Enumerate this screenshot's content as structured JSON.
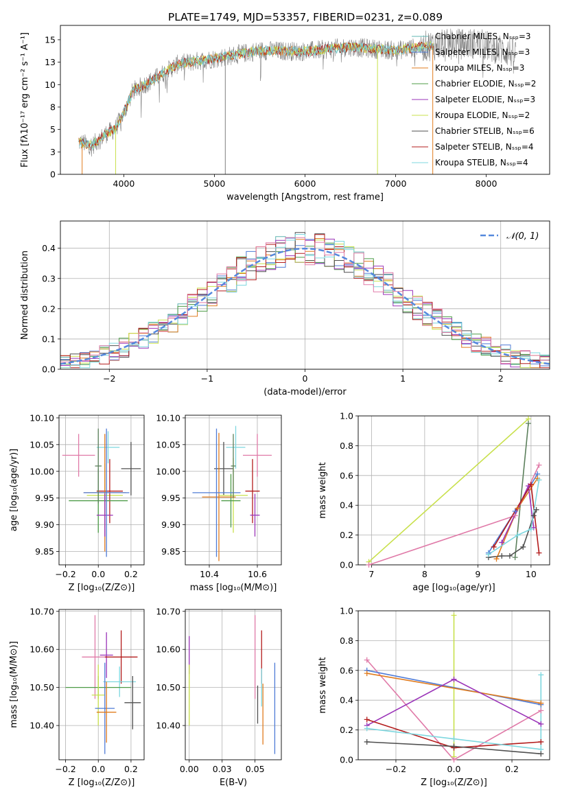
{
  "figure_title": "PLATE=1749, MJD=53357, FIBERID=0231, z=0.089",
  "palette": {
    "chabrier_miles": "#5fb4b0",
    "salpeter_miles": "#4f7bd6",
    "kroupa_miles": "#e07b1d",
    "chabrier_elodie": "#4c9b46",
    "salpeter_elodie": "#9a33b8",
    "kroupa_elodie": "#c8e04b",
    "chabrier_stelib": "#4f4f4f",
    "salpeter_stelib": "#b31b1b",
    "kroupa_stelib": "#7dd7df",
    "pink": "#e07aa8",
    "dark_green": "#5b7f5b",
    "normal_line": "#5588dd"
  },
  "chart_data": [
    {
      "id": "spectrum",
      "type": "line",
      "xlabel": "wavelength [Angstrom, rest frame]",
      "ylabel": "Flux [fλ10⁻¹⁷ erg cm⁻² s⁻¹ A⁻¹]",
      "xlim": [
        3300,
        8700
      ],
      "ylim": [
        0,
        16.6
      ],
      "xticks": [
        4000,
        5000,
        6000,
        7000,
        8000
      ],
      "yticks": [
        0.0,
        2.5,
        5.0,
        7.5,
        10.0,
        12.5,
        15.0
      ],
      "grid": false,
      "legend": "top-right",
      "legend_entries": [
        "Chabrier MILES, N_SSP=3",
        "Salpeter MILES, N_SSP=3",
        "Kroupa MILES, N_SSP=3",
        "Chabrier ELODIE, N_SSP=2",
        "Salpeter ELODIE, N_SSP=3",
        "Kroupa ELODIE, N_SSP=2",
        "Chabrier STELIB, N_SSP=6",
        "Salpeter STELIB, N_SSP=4",
        "Kroupa STELIB, N_SSP=4"
      ],
      "continuum": {
        "x": [
          3500,
          3650,
          3800,
          3900,
          4000,
          4100,
          4300,
          4600,
          5000,
          5500,
          6000,
          6500,
          7000,
          7400,
          7900,
          8300
        ],
        "y": [
          3.6,
          3.2,
          4.5,
          5.0,
          6.8,
          9.3,
          10.4,
          12.3,
          12.9,
          13.8,
          13.7,
          14.2,
          13.8,
          14.4,
          14.6,
          13.5
        ]
      },
      "observed_extent": [
        3500,
        8330
      ],
      "model_extent": [
        3500,
        7420
      ]
    },
    {
      "id": "residuals",
      "type": "line",
      "xlabel": "(data-model)/error",
      "ylabel": "Normed distribution",
      "xlim": [
        -2.5,
        2.5
      ],
      "ylim": [
        0,
        0.49
      ],
      "xticks": [
        -2,
        -1,
        0,
        1,
        2
      ],
      "yticks": [
        0.0,
        0.1,
        0.2,
        0.3,
        0.4
      ],
      "grid": true,
      "legend": "top-right",
      "normal_label": "𝒩(0, 1)",
      "bin_width": 0.1
    },
    {
      "id": "age_vs_Z",
      "type": "scatter",
      "xlabel": "Z [log₁₀(Z/Z⊙)]",
      "ylabel": "age  [log₁₀(age/yr)]",
      "xlim": [
        -0.24,
        0.28
      ],
      "ylim": [
        9.825,
        10.105
      ],
      "xticks": [
        -0.2,
        0.0,
        0.2
      ],
      "yticks": [
        9.85,
        9.9,
        9.95,
        10.0,
        10.05,
        10.1
      ],
      "grid": true,
      "points": [
        {
          "x": -0.12,
          "y": 10.03,
          "xerr": 0.1,
          "yerr": 0.04,
          "c": "pink"
        },
        {
          "x": 0.06,
          "y": 10.045,
          "xerr": 0.07,
          "yerr": 0.03,
          "c": "kroupa_stelib"
        },
        {
          "x": 0.2,
          "y": 10.005,
          "xerr": 0.06,
          "yerr": 0.05,
          "c": "chabrier_stelib"
        },
        {
          "x": 0.04,
          "y": 9.955,
          "xerr": 0.11,
          "yerr": 0.06,
          "c": "kroupa_elodie"
        },
        {
          "x": 0.07,
          "y": 9.963,
          "xerr": 0.08,
          "yerr": 0.06,
          "c": "salpeter_stelib"
        },
        {
          "x": 0.0,
          "y": 9.945,
          "xerr": 0.18,
          "yerr": 0.06,
          "c": "chabrier_elodie"
        },
        {
          "x": 0.04,
          "y": 9.96,
          "xerr": 0.13,
          "yerr": 0.11,
          "c": "kroupa_miles"
        },
        {
          "x": 0.04,
          "y": 9.918,
          "xerr": 0.05,
          "yerr": 0.04,
          "c": "salpeter_elodie"
        },
        {
          "x": 0.05,
          "y": 9.96,
          "xerr": 0.14,
          "yerr": 0.12,
          "c": "salpeter_miles"
        },
        {
          "x": 0.0,
          "y": 10.01,
          "xerr": 0.02,
          "yerr": 0.07,
          "c": "dark_green"
        }
      ]
    },
    {
      "id": "age_vs_mass",
      "type": "scatter",
      "xlabel": "mass [log₁₀(M/M⊙)]",
      "ylabel": "",
      "xlim": [
        10.3,
        10.7
      ],
      "ylim": [
        9.825,
        10.105
      ],
      "xticks": [
        10.4,
        10.6
      ],
      "yticks": [
        9.85,
        9.9,
        9.95,
        10.0,
        10.05,
        10.1
      ],
      "grid": true,
      "points": [
        {
          "x": 10.6,
          "y": 10.03,
          "xerr": 0.06,
          "yerr": 0.04,
          "c": "pink"
        },
        {
          "x": 10.51,
          "y": 10.045,
          "xerr": 0.04,
          "yerr": 0.04,
          "c": "kroupa_stelib"
        },
        {
          "x": 10.46,
          "y": 10.005,
          "xerr": 0.04,
          "yerr": 0.05,
          "c": "chabrier_stelib"
        },
        {
          "x": 10.5,
          "y": 9.955,
          "xerr": 0.06,
          "yerr": 0.07,
          "c": "kroupa_elodie"
        },
        {
          "x": 10.58,
          "y": 9.963,
          "xerr": 0.03,
          "yerr": 0.06,
          "c": "salpeter_stelib"
        },
        {
          "x": 10.49,
          "y": 9.945,
          "xerr": 0.04,
          "yerr": 0.05,
          "c": "chabrier_elodie"
        },
        {
          "x": 10.44,
          "y": 9.952,
          "xerr": 0.07,
          "yerr": 0.12,
          "c": "kroupa_miles"
        },
        {
          "x": 10.59,
          "y": 9.918,
          "xerr": 0.02,
          "yerr": 0.04,
          "c": "salpeter_elodie"
        },
        {
          "x": 10.43,
          "y": 9.96,
          "xerr": 0.1,
          "yerr": 0.12,
          "c": "salpeter_miles"
        },
        {
          "x": 10.5,
          "y": 10.01,
          "xerr": 0.01,
          "yerr": 0.06,
          "c": "dark_green"
        }
      ]
    },
    {
      "id": "massweight_vs_age",
      "type": "line",
      "xlabel": "age  [log₁₀(age/yr)]",
      "ylabel": "mass weight",
      "xlim": [
        6.75,
        10.35
      ],
      "ylim": [
        0,
        1
      ],
      "xticks": [
        7,
        8,
        9,
        10
      ],
      "yticks": [
        0.0,
        0.2,
        0.4,
        0.6,
        0.8,
        1.0
      ],
      "grid": true,
      "series": [
        {
          "c": "kroupa_elodie",
          "x": [
            6.95,
            9.95
          ],
          "y": [
            0.02,
            0.98
          ]
        },
        {
          "c": "pink",
          "x": [
            6.95,
            9.7,
            10.15
          ],
          "y": [
            0.0,
            0.33,
            0.67
          ]
        },
        {
          "c": "dark_green",
          "x": [
            9.7,
            9.95
          ],
          "y": [
            0.05,
            0.95
          ]
        },
        {
          "c": "salpeter_miles",
          "x": [
            9.2,
            9.7,
            10.12
          ],
          "y": [
            0.08,
            0.36,
            0.61
          ]
        },
        {
          "c": "kroupa_miles",
          "x": [
            9.35,
            9.75,
            10.12
          ],
          "y": [
            0.04,
            0.38,
            0.58
          ]
        },
        {
          "c": "salpeter_elodie",
          "x": [
            9.45,
            9.95,
            10.05
          ],
          "y": [
            0.15,
            0.53,
            0.25
          ]
        },
        {
          "c": "salpeter_stelib",
          "x": [
            9.3,
            10.0,
            10.15
          ],
          "y": [
            0.12,
            0.54,
            0.08
          ]
        },
        {
          "c": "chabrier_stelib",
          "x": [
            9.2,
            9.45,
            9.6,
            9.85,
            10.05,
            10.1
          ],
          "y": [
            0.05,
            0.06,
            0.06,
            0.12,
            0.33,
            0.37
          ]
        },
        {
          "c": "kroupa_stelib",
          "x": [
            9.2,
            9.75,
            10.0,
            10.15
          ],
          "y": [
            0.07,
            0.2,
            0.24,
            0.57
          ]
        }
      ]
    },
    {
      "id": "mass_vs_Z",
      "type": "scatter",
      "xlabel": "Z [log₁₀(Z/Z⊙)]",
      "ylabel": "mass [log₁₀(M/M⊙)]",
      "xlim": [
        -0.24,
        0.28
      ],
      "ylim": [
        10.31,
        10.705
      ],
      "xticks": [
        -0.2,
        0.0,
        0.2
      ],
      "yticks": [
        10.4,
        10.5,
        10.6,
        10.7
      ],
      "grid": true,
      "points": [
        {
          "x": -0.02,
          "y": 10.58,
          "xerr": 0.08,
          "yerr": 0.11,
          "c": "pink"
        },
        {
          "x": 0.05,
          "y": 10.585,
          "xerr": 0.04,
          "yerr": 0.06,
          "c": "salpeter_elodie"
        },
        {
          "x": 0.14,
          "y": 10.58,
          "xerr": 0.1,
          "yerr": 0.07,
          "c": "salpeter_stelib"
        },
        {
          "x": 0.13,
          "y": 10.515,
          "xerr": 0.1,
          "yerr": 0.04,
          "c": "kroupa_stelib"
        },
        {
          "x": 0.0,
          "y": 10.5,
          "xerr": 0.2,
          "yerr": 0.03,
          "c": "chabrier_elodie"
        },
        {
          "x": 0.0,
          "y": 10.48,
          "xerr": 0.04,
          "yerr": 0.08,
          "c": "kroupa_elodie"
        },
        {
          "x": 0.21,
          "y": 10.46,
          "xerr": 0.05,
          "yerr": 0.07,
          "c": "chabrier_stelib"
        },
        {
          "x": 0.04,
          "y": 10.445,
          "xerr": 0.06,
          "yerr": 0.12,
          "c": "salpeter_miles"
        },
        {
          "x": 0.05,
          "y": 10.435,
          "xerr": 0.06,
          "yerr": 0.08,
          "c": "kroupa_miles"
        }
      ]
    },
    {
      "id": "mass_vs_ebv",
      "type": "scatter",
      "xlabel": "E(B-V)",
      "ylabel": "",
      "xlim": [
        -0.003,
        0.07
      ],
      "ylim": [
        10.31,
        10.705
      ],
      "xticks": [
        0.0,
        0.025,
        0.05
      ],
      "yticks": [
        10.4,
        10.5,
        10.6,
        10.7
      ],
      "grid": true,
      "points": [
        {
          "x": 0.05,
          "y": 10.58,
          "xerr": 0,
          "yerr": 0.11,
          "c": "pink"
        },
        {
          "x": 0.0,
          "y": 10.585,
          "xerr": 0,
          "yerr": 0.05,
          "c": "salpeter_elodie"
        },
        {
          "x": 0.0,
          "y": 10.48,
          "xerr": 0,
          "yerr": 0.08,
          "c": "kroupa_elodie"
        },
        {
          "x": 0.055,
          "y": 10.58,
          "xerr": 0,
          "yerr": 0.07,
          "c": "salpeter_stelib"
        },
        {
          "x": 0.055,
          "y": 10.5,
          "xerr": 0,
          "yerr": 0.05,
          "c": "kroupa_stelib"
        },
        {
          "x": 0.052,
          "y": 10.455,
          "xerr": 0,
          "yerr": 0.05,
          "c": "chabrier_stelib"
        },
        {
          "x": 0.056,
          "y": 10.43,
          "xerr": 0,
          "yerr": 0.08,
          "c": "kroupa_miles"
        },
        {
          "x": 0.065,
          "y": 10.445,
          "xerr": 0,
          "yerr": 0.12,
          "c": "salpeter_miles"
        }
      ]
    },
    {
      "id": "massweight_vs_Z",
      "type": "line",
      "xlabel": "Z [log₁₀(Z/Z⊙)]",
      "ylabel": "mass weight",
      "xlim": [
        -0.33,
        0.33
      ],
      "ylim": [
        0,
        1
      ],
      "xticks": [
        -0.2,
        0.0,
        0.2
      ],
      "yticks": [
        0.0,
        0.2,
        0.4,
        0.6,
        0.8,
        1.0
      ],
      "grid": true,
      "series": [
        {
          "c": "kroupa_elodie",
          "x": [
            0.0,
            0.0
          ],
          "y": [
            0.02,
            0.97
          ]
        },
        {
          "c": "pink",
          "x": [
            -0.3,
            0.0,
            0.3
          ],
          "y": [
            0.67,
            0.0,
            0.33
          ]
        },
        {
          "c": "salpeter_miles",
          "x": [
            -0.3,
            0.3
          ],
          "y": [
            0.6,
            0.37
          ]
        },
        {
          "c": "kroupa_miles",
          "x": [
            -0.3,
            0.3
          ],
          "y": [
            0.58,
            0.38
          ]
        },
        {
          "c": "salpeter_elodie",
          "x": [
            -0.3,
            0.0,
            0.3
          ],
          "y": [
            0.23,
            0.54,
            0.24
          ]
        },
        {
          "c": "salpeter_stelib",
          "x": [
            -0.3,
            0.0,
            0.3
          ],
          "y": [
            0.27,
            0.08,
            0.12
          ]
        },
        {
          "c": "kroupa_stelib",
          "x": [
            -0.3,
            0.0,
            0.3,
            0.3
          ],
          "y": [
            0.21,
            0.14,
            0.07,
            0.57
          ]
        },
        {
          "c": "chabrier_stelib",
          "x": [
            -0.3,
            0.0,
            0.3
          ],
          "y": [
            0.12,
            0.09,
            0.04
          ]
        }
      ]
    }
  ]
}
